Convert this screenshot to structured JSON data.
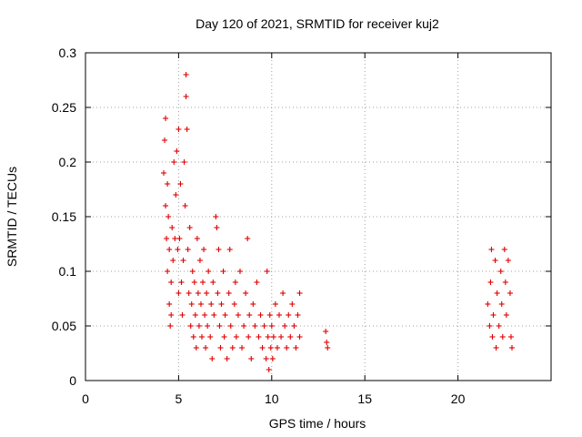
{
  "chart_data": {
    "type": "scatter",
    "title": "Day 120 of 2021, SRMTID for receiver kuj2",
    "xlabel": "GPS time / hours",
    "ylabel": "SRMTID / TECUs",
    "xlim": [
      0,
      25
    ],
    "ylim": [
      0,
      0.3
    ],
    "x_ticks": [
      "0",
      "5",
      "10",
      "15",
      "20"
    ],
    "y_ticks": [
      "0",
      "0.05",
      "0.1",
      "0.15",
      "0.2",
      "0.25",
      "0.3"
    ],
    "grid": true,
    "marker": "plus",
    "color": "#e00000",
    "series": [
      {
        "points": [
          [
            4.2,
            0.19
          ],
          [
            4.25,
            0.22
          ],
          [
            4.3,
            0.24
          ],
          [
            4.3,
            0.16
          ],
          [
            4.35,
            0.13
          ],
          [
            4.4,
            0.18
          ],
          [
            4.4,
            0.1
          ],
          [
            4.45,
            0.15
          ],
          [
            4.5,
            0.07
          ],
          [
            4.5,
            0.12
          ],
          [
            4.55,
            0.05
          ],
          [
            4.6,
            0.09
          ],
          [
            4.6,
            0.06
          ],
          [
            4.65,
            0.14
          ],
          [
            4.7,
            0.11
          ],
          [
            4.75,
            0.2
          ],
          [
            4.8,
            0.13
          ],
          [
            4.85,
            0.17
          ],
          [
            4.9,
            0.21
          ],
          [
            4.95,
            0.12
          ],
          [
            5.0,
            0.08
          ],
          [
            5.0,
            0.23
          ],
          [
            5.05,
            0.13
          ],
          [
            5.1,
            0.18
          ],
          [
            5.15,
            0.09
          ],
          [
            5.2,
            0.06
          ],
          [
            5.25,
            0.11
          ],
          [
            5.3,
            0.2
          ],
          [
            5.35,
            0.16
          ],
          [
            5.4,
            0.28
          ],
          [
            5.4,
            0.26
          ],
          [
            5.45,
            0.23
          ],
          [
            5.5,
            0.12
          ],
          [
            5.55,
            0.08
          ],
          [
            5.6,
            0.14
          ],
          [
            5.65,
            0.05
          ],
          [
            5.7,
            0.07
          ],
          [
            5.75,
            0.1
          ],
          [
            5.8,
            0.04
          ],
          [
            5.85,
            0.09
          ],
          [
            5.9,
            0.06
          ],
          [
            5.95,
            0.03
          ],
          [
            6.0,
            0.13
          ],
          [
            6.05,
            0.08
          ],
          [
            6.1,
            0.05
          ],
          [
            6.15,
            0.11
          ],
          [
            6.2,
            0.07
          ],
          [
            6.25,
            0.04
          ],
          [
            6.3,
            0.09
          ],
          [
            6.35,
            0.12
          ],
          [
            6.4,
            0.06
          ],
          [
            6.45,
            0.03
          ],
          [
            6.5,
            0.08
          ],
          [
            6.55,
            0.05
          ],
          [
            6.6,
            0.1
          ],
          [
            6.7,
            0.04
          ],
          [
            6.75,
            0.07
          ],
          [
            6.8,
            0.02
          ],
          [
            6.85,
            0.09
          ],
          [
            6.9,
            0.06
          ],
          [
            7.0,
            0.15
          ],
          [
            7.05,
            0.14
          ],
          [
            7.1,
            0.08
          ],
          [
            7.15,
            0.12
          ],
          [
            7.2,
            0.05
          ],
          [
            7.25,
            0.03
          ],
          [
            7.3,
            0.07
          ],
          [
            7.4,
            0.1
          ],
          [
            7.45,
            0.04
          ],
          [
            7.5,
            0.06
          ],
          [
            7.6,
            0.02
          ],
          [
            7.7,
            0.08
          ],
          [
            7.75,
            0.12
          ],
          [
            7.8,
            0.05
          ],
          [
            7.9,
            0.03
          ],
          [
            8.0,
            0.07
          ],
          [
            8.05,
            0.09
          ],
          [
            8.1,
            0.04
          ],
          [
            8.2,
            0.06
          ],
          [
            8.3,
            0.1
          ],
          [
            8.4,
            0.03
          ],
          [
            8.5,
            0.05
          ],
          [
            8.6,
            0.08
          ],
          [
            8.7,
            0.13
          ],
          [
            8.75,
            0.04
          ],
          [
            8.8,
            0.06
          ],
          [
            8.9,
            0.02
          ],
          [
            9.0,
            0.07
          ],
          [
            9.1,
            0.05
          ],
          [
            9.2,
            0.09
          ],
          [
            9.3,
            0.04
          ],
          [
            9.4,
            0.06
          ],
          [
            9.5,
            0.03
          ],
          [
            9.6,
            0.05
          ],
          [
            9.7,
            0.02
          ],
          [
            9.75,
            0.1
          ],
          [
            9.8,
            0.04
          ],
          [
            9.85,
            0.01
          ],
          [
            9.9,
            0.06
          ],
          [
            9.95,
            0.03
          ],
          [
            10.0,
            0.05
          ],
          [
            10.05,
            0.02
          ],
          [
            10.1,
            0.04
          ],
          [
            10.2,
            0.07
          ],
          [
            10.3,
            0.03
          ],
          [
            10.4,
            0.06
          ],
          [
            10.5,
            0.04
          ],
          [
            10.6,
            0.08
          ],
          [
            10.7,
            0.05
          ],
          [
            10.8,
            0.03
          ],
          [
            10.9,
            0.06
          ],
          [
            11.0,
            0.04
          ],
          [
            11.1,
            0.07
          ],
          [
            11.2,
            0.05
          ],
          [
            11.3,
            0.03
          ],
          [
            11.4,
            0.06
          ],
          [
            11.5,
            0.08
          ],
          [
            11.5,
            0.04
          ],
          [
            12.9,
            0.045
          ],
          [
            12.95,
            0.035
          ],
          [
            13.0,
            0.03
          ],
          [
            21.6,
            0.07
          ],
          [
            21.7,
            0.05
          ],
          [
            21.75,
            0.09
          ],
          [
            21.8,
            0.12
          ],
          [
            21.85,
            0.04
          ],
          [
            21.9,
            0.06
          ],
          [
            22.0,
            0.11
          ],
          [
            22.05,
            0.03
          ],
          [
            22.1,
            0.08
          ],
          [
            22.2,
            0.05
          ],
          [
            22.3,
            0.1
          ],
          [
            22.35,
            0.07
          ],
          [
            22.4,
            0.04
          ],
          [
            22.5,
            0.12
          ],
          [
            22.55,
            0.09
          ],
          [
            22.6,
            0.06
          ],
          [
            22.7,
            0.11
          ],
          [
            22.8,
            0.08
          ],
          [
            22.85,
            0.04
          ],
          [
            22.9,
            0.03
          ]
        ]
      }
    ]
  }
}
